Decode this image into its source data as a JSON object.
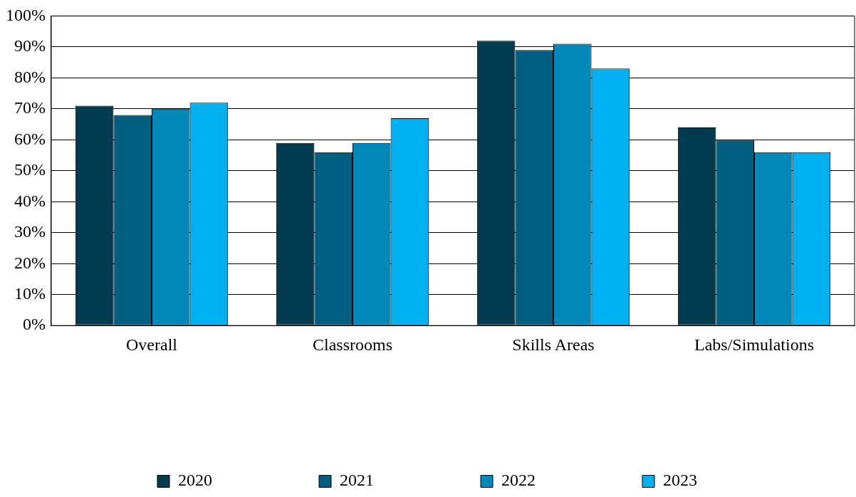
{
  "chart_data": {
    "type": "bar",
    "categories": [
      "Overall",
      "Classrooms",
      "Skills Areas",
      "Labs/Simulations"
    ],
    "series": [
      {
        "name": "2020",
        "color": "#003b4f",
        "values": [
          71,
          59,
          92,
          64
        ]
      },
      {
        "name": "2021",
        "color": "#005f80",
        "values": [
          68,
          56,
          89,
          60
        ]
      },
      {
        "name": "2022",
        "color": "#0088b8",
        "values": [
          70,
          59,
          91,
          56
        ]
      },
      {
        "name": "2023",
        "color": "#00b0f0",
        "values": [
          72,
          67,
          83,
          56
        ]
      }
    ],
    "ylim": [
      0,
      100
    ],
    "yticks": [
      {
        "value": 0,
        "label": "0%"
      },
      {
        "value": 10,
        "label": "10%"
      },
      {
        "value": 20,
        "label": "20%"
      },
      {
        "value": 30,
        "label": "30%"
      },
      {
        "value": 40,
        "label": "40%"
      },
      {
        "value": 50,
        "label": "50%"
      },
      {
        "value": 60,
        "label": "60%"
      },
      {
        "value": 70,
        "label": "70%"
      },
      {
        "value": 80,
        "label": "80%"
      },
      {
        "value": 90,
        "label": "90%"
      },
      {
        "value": 100,
        "label": "100%"
      }
    ],
    "grid": "y",
    "legend": "bottom"
  }
}
